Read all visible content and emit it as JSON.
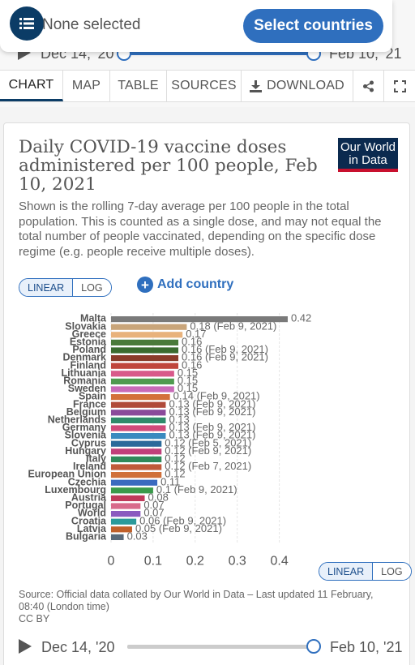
{
  "picker": {
    "placeholder_text": "None selected",
    "button_label": "Select countries",
    "icon": "list-icon"
  },
  "timeline": {
    "start_label": "Dec 14, '20",
    "end_label": "Feb 10, '21",
    "handle_start": 0.0,
    "handle_end": 1.0
  },
  "tabs": [
    {
      "label": "CHART",
      "active": true
    },
    {
      "label": "MAP",
      "active": false
    },
    {
      "label": "TABLE",
      "active": false
    },
    {
      "label": "SOURCES",
      "active": false
    },
    {
      "label": "DOWNLOAD",
      "active": false,
      "icon": "download-icon"
    }
  ],
  "tab_icons": {
    "share": "share-icon",
    "fullscreen": "fullscreen-icon"
  },
  "card": {
    "title": "Daily COVID-19 vaccine doses administered per 100 people, Feb 10, 2021",
    "subtitle": "Shown is the rolling 7-day average per 100 people in the total population. This is counted as a single dose, and may not equal the total number of people vaccinated, depending on the specific dose regime (e.g. people receive multiple doses).",
    "logo_line1": "Our World",
    "logo_line2": "in Data",
    "scale_top": {
      "linear": "LINEAR",
      "log": "LOG"
    },
    "scale_bottom": {
      "linear": "LINEAR",
      "log": "LOG"
    },
    "add_country": "Add country",
    "source": "Source: Official data collated by Our World in Data – Last updated 11 February, 08:40 (London time)",
    "license": "CC BY"
  },
  "colors": {
    "accent": "#2f6fbe",
    "logo_bg": "#0b2a4f",
    "logo_red": "#c8102e"
  },
  "chart_data": {
    "type": "bar",
    "orientation": "horizontal",
    "xlim": [
      0,
      0.42
    ],
    "xticks": [
      "0",
      "0.1",
      "0.2",
      "0.3",
      "0.4"
    ],
    "grid": true,
    "bars": [
      {
        "country": "Malta",
        "value": 0.42,
        "label": "0.42",
        "color": "#7a7a7a"
      },
      {
        "country": "Slovakia",
        "value": 0.18,
        "label": "0.18 (Feb 9, 2021)",
        "color": "#c9a57a"
      },
      {
        "country": "Greece",
        "value": 0.17,
        "label": "0.17",
        "color": "#e8b27c"
      },
      {
        "country": "Estonia",
        "value": 0.16,
        "label": "0.16",
        "color": "#4a7a3a"
      },
      {
        "country": "Poland",
        "value": 0.16,
        "label": "0.16 (Feb 9, 2021)",
        "color": "#3a6b2f"
      },
      {
        "country": "Denmark",
        "value": 0.16,
        "label": "0.16 (Feb 9, 2021)",
        "color": "#8a3b2a"
      },
      {
        "country": "Finland",
        "value": 0.16,
        "label": "0.16",
        "color": "#c0463c"
      },
      {
        "country": "Lithuania",
        "value": 0.15,
        "label": "0.15",
        "color": "#d85a8a"
      },
      {
        "country": "Romania",
        "value": 0.15,
        "label": "0.15",
        "color": "#4f9a4f"
      },
      {
        "country": "Sweden",
        "value": 0.15,
        "label": "0.15",
        "color": "#c86ab8"
      },
      {
        "country": "Spain",
        "value": 0.14,
        "label": "0.14 (Feb 9, 2021)",
        "color": "#d3703a"
      },
      {
        "country": "France",
        "value": 0.13,
        "label": "0.13 (Feb 9, 2021)",
        "color": "#b04a3a"
      },
      {
        "country": "Belgium",
        "value": 0.13,
        "label": "0.13 (Feb 9, 2021)",
        "color": "#8a4a9a"
      },
      {
        "country": "Netherlands",
        "value": 0.13,
        "label": "0.13",
        "color": "#2f8a6a"
      },
      {
        "country": "Germany",
        "value": 0.13,
        "label": "0.13 (Feb 9, 2021)",
        "color": "#d04a7a"
      },
      {
        "country": "Slovenia",
        "value": 0.13,
        "label": "0.13 (Feb 9, 2021)",
        "color": "#3a8abf"
      },
      {
        "country": "Cyprus",
        "value": 0.12,
        "label": "0.12 (Feb 5, 2021)",
        "color": "#2a6a9a"
      },
      {
        "country": "Hungary",
        "value": 0.12,
        "label": "0.12 (Feb 9, 2021)",
        "color": "#c0407a"
      },
      {
        "country": "Italy",
        "value": 0.12,
        "label": "0.12",
        "color": "#2f8a5a"
      },
      {
        "country": "Ireland",
        "value": 0.12,
        "label": "0.12 (Feb 7, 2021)",
        "color": "#c05a3a"
      },
      {
        "country": "European Union",
        "value": 0.12,
        "label": "0.12",
        "color": "#d0703a"
      },
      {
        "country": "Czechia",
        "value": 0.11,
        "label": "0.11",
        "color": "#3a6abf"
      },
      {
        "country": "Luxembourg",
        "value": 0.1,
        "label": "0.1 (Feb 9, 2021)",
        "color": "#3a9a4a"
      },
      {
        "country": "Austria",
        "value": 0.08,
        "label": "0.08",
        "color": "#c03a5a"
      },
      {
        "country": "Portugal",
        "value": 0.07,
        "label": "0.07",
        "color": "#d86a8a"
      },
      {
        "country": "World",
        "value": 0.07,
        "label": "0.07",
        "color": "#8a5abf"
      },
      {
        "country": "Croatia",
        "value": 0.06,
        "label": "0.06 (Feb 9, 2021)",
        "color": "#2a9a9a"
      },
      {
        "country": "Latvia",
        "value": 0.05,
        "label": "0.05 (Feb 9, 2021)",
        "color": "#c0602a"
      },
      {
        "country": "Bulgaria",
        "value": 0.03,
        "label": "0.03",
        "color": "#5a6a7a"
      }
    ]
  }
}
